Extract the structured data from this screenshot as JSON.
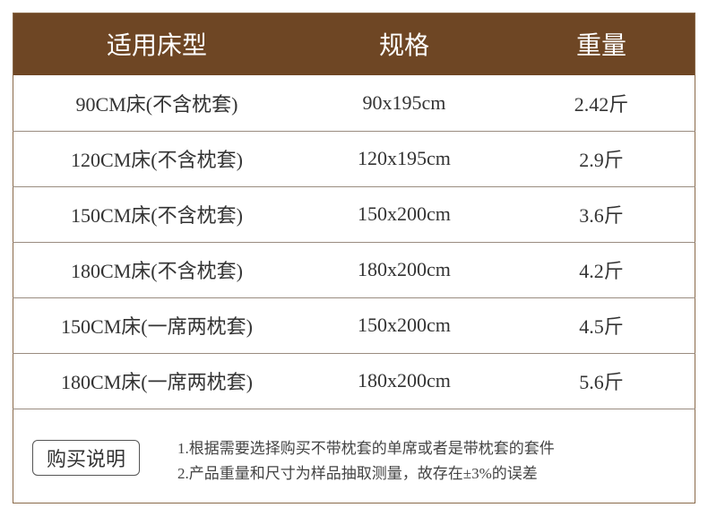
{
  "table": {
    "header": [
      "适用床型",
      "规格",
      "重量"
    ],
    "rows": [
      [
        "90CM床(不含枕套)",
        "90x195cm",
        "2.42斤"
      ],
      [
        "120CM床(不含枕套)",
        "120x195cm",
        "2.9斤"
      ],
      [
        "150CM床(不含枕套)",
        "150x200cm",
        "3.6斤"
      ],
      [
        "180CM床(不含枕套)",
        "180x200cm",
        "4.2斤"
      ],
      [
        "150CM床(一席两枕套)",
        "150x200cm",
        "4.5斤"
      ],
      [
        "180CM床(一席两枕套)",
        "180x200cm",
        "5.6斤"
      ]
    ]
  },
  "notes": {
    "label": "购买说明",
    "items": [
      "1.根据需要选择购买不带枕套的单席或者是带枕套的套件",
      "2.产品重量和尺寸为样品抽取测量，故存在±3%的误差"
    ]
  }
}
